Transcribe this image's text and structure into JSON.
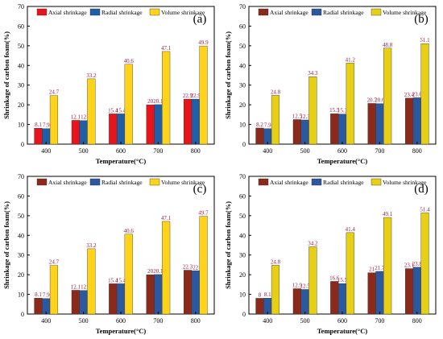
{
  "colors": {
    "axial_a": "#e8141c",
    "radial_a": "#1f5fa8",
    "volume_a": "#ffd31a",
    "axial_dark": "#8b2a1b",
    "radial_dark": "#2c58a0",
    "volume_dark": "#e6cf14",
    "label_text": "#9b1c45"
  },
  "chart_data": [
    {
      "type": "bar",
      "panel_label": "(a)",
      "xlabel": "Temperature(°C)",
      "ylabel": "Shrinkage of carbon foam(%)",
      "ylim": [
        0,
        70
      ],
      "yticks": [
        "0",
        "10",
        "20",
        "30",
        "40",
        "50",
        "60",
        "70"
      ],
      "categories": [
        "400",
        "500",
        "600",
        "700",
        "800"
      ],
      "legend_position": "top",
      "series": [
        {
          "name": "Axial shrinkage",
          "values": [
            8.1,
            12.1,
            15.4,
            20,
            22.9
          ],
          "labels": [
            "8.1",
            "12.1",
            "15.4",
            "20",
            "22.9"
          ]
        },
        {
          "name": "Radial shrinkage",
          "values": [
            7.9,
            12,
            15.4,
            20.1,
            22.9
          ],
          "labels": [
            "7.9",
            "12",
            "15.4",
            "20.1",
            "22.9"
          ]
        },
        {
          "name": "Volume shrinkage",
          "values": [
            24.7,
            33.2,
            40.6,
            47.1,
            49.9
          ],
          "labels": [
            "24.7",
            "33.2",
            "40.6",
            "47.1",
            "49.9"
          ]
        }
      ]
    },
    {
      "type": "bar",
      "panel_label": "(b)",
      "xlabel": "Temperature(°C)",
      "ylabel": "Shrinkage of carbon foam(%)",
      "ylim": [
        0,
        70
      ],
      "yticks": [
        "0",
        "10",
        "20",
        "30",
        "40",
        "50",
        "60",
        "70"
      ],
      "categories": [
        "400",
        "500",
        "600",
        "700",
        "800"
      ],
      "legend_position": "top",
      "series": [
        {
          "name": "Axial shrinkage",
          "values": [
            8.2,
            12.5,
            15.5,
            20.7,
            23.4
          ],
          "labels": [
            "8.2",
            "12.5",
            "15.5",
            "20.7",
            "23.4"
          ]
        },
        {
          "name": "Radial shrinkage",
          "values": [
            7.9,
            12.3,
            15.3,
            20.6,
            23.6
          ],
          "labels": [
            "7.9",
            "12.3",
            "15.3",
            "20.6",
            "23.6"
          ]
        },
        {
          "name": "Volume shrinkage",
          "values": [
            24.8,
            34.3,
            41.2,
            48.8,
            51.1
          ],
          "labels": [
            "24.8",
            "34.3",
            "41.2",
            "48.8",
            "51.1"
          ]
        }
      ]
    },
    {
      "type": "bar",
      "panel_label": "(c)",
      "xlabel": "Temperature(°C)",
      "ylabel": "Shrinkage of carbon foam(%)",
      "ylim": [
        0,
        70
      ],
      "yticks": [
        "0",
        "10",
        "20",
        "30",
        "40",
        "50",
        "60",
        "70"
      ],
      "categories": [
        "400",
        "500",
        "600",
        "700",
        "800"
      ],
      "legend_position": "top",
      "series": [
        {
          "name": "Axial shrinkage",
          "values": [
            8.1,
            12.1,
            15.4,
            20,
            22.3
          ],
          "labels": [
            "8.1",
            "12.1",
            "15.4",
            "20",
            "22.3"
          ]
        },
        {
          "name": "Radial shrinkage",
          "values": [
            7.9,
            12,
            15.4,
            20.1,
            22
          ],
          "labels": [
            "7.9",
            "12",
            "15.4",
            "20.1",
            "22"
          ]
        },
        {
          "name": "Volume shrinkage",
          "values": [
            24.7,
            33.2,
            40.6,
            47.1,
            49.7
          ],
          "labels": [
            "24.7",
            "33.2",
            "40.6",
            "47.1",
            "49.7"
          ]
        }
      ]
    },
    {
      "type": "bar",
      "panel_label": "(d)",
      "xlabel": "Temperature(°C)",
      "ylabel": "Shrinkage of carbon foam(%)",
      "ylim": [
        0,
        70
      ],
      "yticks": [
        "0",
        "10",
        "20",
        "30",
        "40",
        "50",
        "60",
        "70"
      ],
      "categories": [
        "400",
        "500",
        "600",
        "700",
        "800"
      ],
      "legend_position": "top",
      "series": [
        {
          "name": "Axial shrinkage",
          "values": [
            8,
            12.9,
            16.6,
            21,
            23.1
          ],
          "labels": [
            "8",
            "12.9",
            "16.6",
            "21",
            "23.1"
          ]
        },
        {
          "name": "Radial shrinkage",
          "values": [
            8.1,
            12.5,
            15.5,
            21.7,
            23.8
          ],
          "labels": [
            "8.1",
            "12.5",
            "15.5",
            "21.7",
            "23.8"
          ]
        },
        {
          "name": "Volume shrinkage",
          "values": [
            24.8,
            34.2,
            41.4,
            49.1,
            51.4
          ],
          "labels": [
            "24.8",
            "34.2",
            "41.4",
            "49.1",
            "51.4"
          ]
        }
      ]
    }
  ]
}
